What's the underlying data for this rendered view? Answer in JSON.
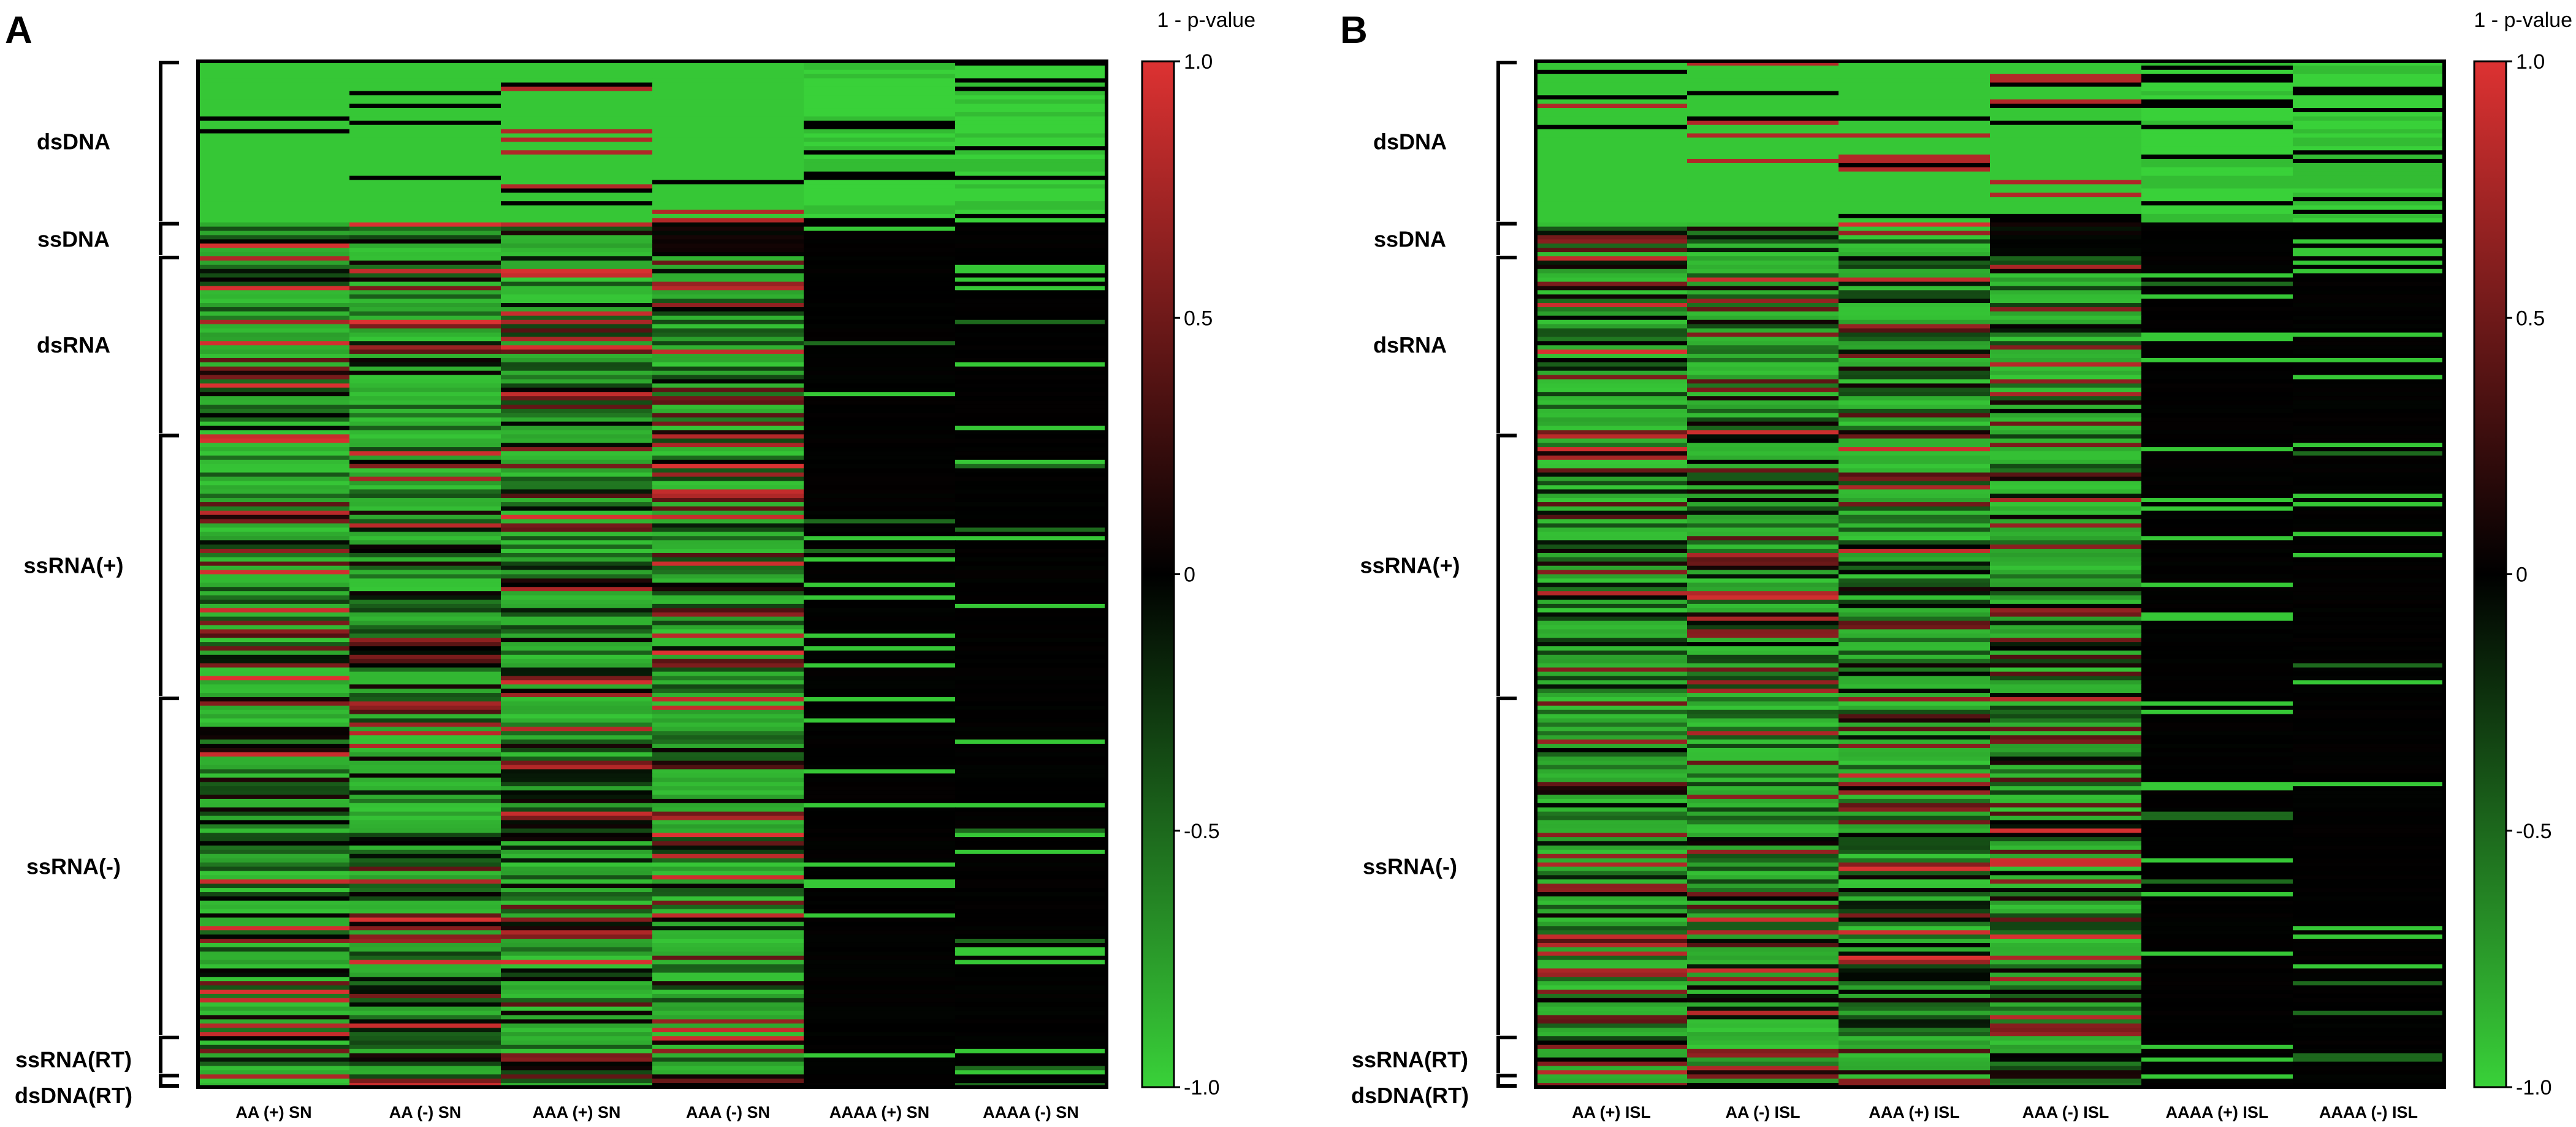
{
  "chart_data": [
    {
      "type": "heatmap",
      "panel_label": "A",
      "colorbar_title": "1 - p-value",
      "colorbar_range": [
        -1.0,
        1.0
      ],
      "colorbar_ticks": [
        "1.0",
        "0.5",
        "0",
        "-0.5",
        "-1.0"
      ],
      "colors": {
        "low": "#39d139",
        "mid": "#000000",
        "high": "#dd3232"
      },
      "columns": [
        "AA (+) SN",
        "AA (-) SN",
        "AAA (+) SN",
        "AAA (-) SN",
        "AAAA (+) SN",
        "AAAA (-) SN"
      ],
      "row_groups": [
        {
          "name": "dsDNA",
          "rows": 38
        },
        {
          "name": "ssDNA",
          "rows": 8
        },
        {
          "name": "dsRNA",
          "rows": 42
        },
        {
          "name": "ssRNA(+)",
          "rows": 62
        },
        {
          "name": "ssRNA(-)",
          "rows": 80
        },
        {
          "name": "ssRNA(RT)",
          "rows": 9
        },
        {
          "name": "dsDNA(RT)",
          "rows": 3
        }
      ],
      "seed": 11
    },
    {
      "type": "heatmap",
      "panel_label": "B",
      "colorbar_title": "1 - p-value",
      "colorbar_range": [
        -1.0,
        1.0
      ],
      "colorbar_ticks": [
        "1.0",
        "0.5",
        "0",
        "-0.5",
        "-1.0"
      ],
      "colors": {
        "low": "#39d139",
        "mid": "#000000",
        "high": "#dd3232"
      },
      "columns": [
        "AA (+) ISL",
        "AA (-) ISL",
        "AAA (+) ISL",
        "AAA (-) ISL",
        "AAAA (+) ISL",
        "AAAA (-) ISL"
      ],
      "row_groups": [
        {
          "name": "dsDNA",
          "rows": 38
        },
        {
          "name": "ssDNA",
          "rows": 8
        },
        {
          "name": "dsRNA",
          "rows": 42
        },
        {
          "name": "ssRNA(+)",
          "rows": 62
        },
        {
          "name": "ssRNA(-)",
          "rows": 80
        },
        {
          "name": "ssRNA(RT)",
          "rows": 9
        },
        {
          "name": "dsDNA(RT)",
          "rows": 3
        }
      ],
      "seed": 29
    }
  ]
}
